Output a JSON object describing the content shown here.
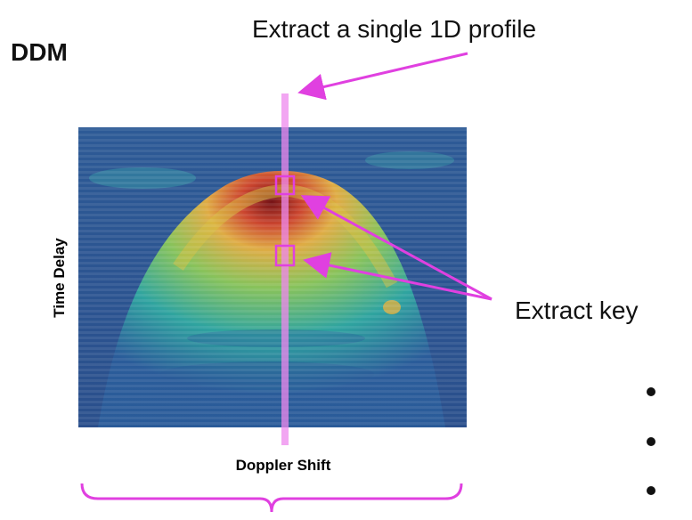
{
  "header": {
    "title": "DDM"
  },
  "annotations": {
    "profile": "Extract a single 1D profile",
    "key": "Extract key"
  },
  "axes": {
    "y_label": "Time Delay",
    "x_label": "Doppler Shift"
  }
}
